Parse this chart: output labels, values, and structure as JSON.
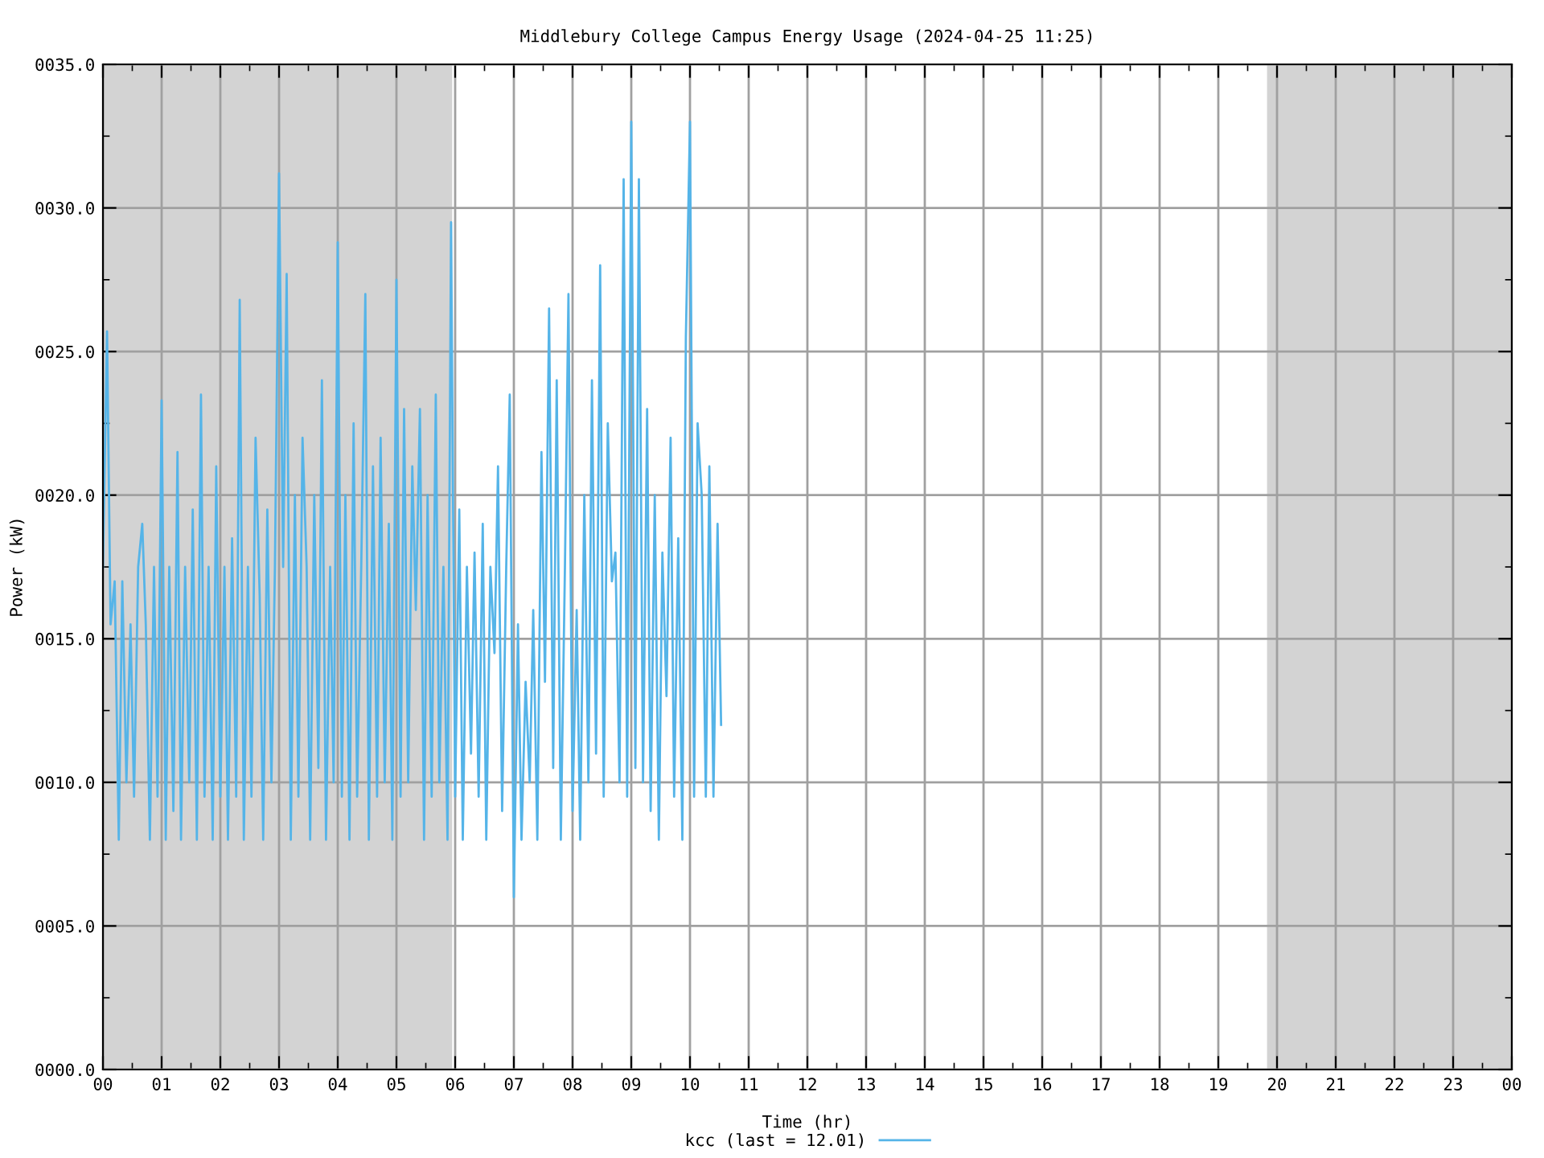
{
  "chart_data": {
    "type": "line",
    "title": "Middlebury College Campus Energy Usage (2024-04-25 11:25)",
    "xlabel": "Time (hr)",
    "ylabel": "Power (kW)",
    "xlim": [
      0,
      24
    ],
    "xticks": [
      {
        "value": 0,
        "label": "00"
      },
      {
        "value": 1,
        "label": "01"
      },
      {
        "value": 2,
        "label": "02"
      },
      {
        "value": 3,
        "label": "03"
      },
      {
        "value": 4,
        "label": "04"
      },
      {
        "value": 5,
        "label": "05"
      },
      {
        "value": 6,
        "label": "06"
      },
      {
        "value": 7,
        "label": "07"
      },
      {
        "value": 8,
        "label": "08"
      },
      {
        "value": 9,
        "label": "09"
      },
      {
        "value": 10,
        "label": "10"
      },
      {
        "value": 11,
        "label": "11"
      },
      {
        "value": 12,
        "label": "12"
      },
      {
        "value": 13,
        "label": "13"
      },
      {
        "value": 14,
        "label": "14"
      },
      {
        "value": 15,
        "label": "15"
      },
      {
        "value": 16,
        "label": "16"
      },
      {
        "value": 17,
        "label": "17"
      },
      {
        "value": 18,
        "label": "18"
      },
      {
        "value": 19,
        "label": "19"
      },
      {
        "value": 20,
        "label": "20"
      },
      {
        "value": 21,
        "label": "21"
      },
      {
        "value": 22,
        "label": "22"
      },
      {
        "value": 23,
        "label": "23"
      },
      {
        "value": 24,
        "label": "00"
      }
    ],
    "ylim": [
      0,
      35
    ],
    "yticks": [
      {
        "value": 0,
        "label": "0000.0"
      },
      {
        "value": 5,
        "label": "0005.0"
      },
      {
        "value": 10,
        "label": "0010.0"
      },
      {
        "value": 15,
        "label": "0015.0"
      },
      {
        "value": 20,
        "label": "0020.0"
      },
      {
        "value": 25,
        "label": "0025.0"
      },
      {
        "value": 30,
        "label": "0030.0"
      },
      {
        "value": 35,
        "label": "0035.0"
      }
    ],
    "grid": true,
    "legend": "bottom",
    "bands": [
      {
        "axis": "x",
        "from": 0,
        "to": 5.95,
        "color": "#d3d3d3"
      },
      {
        "axis": "x",
        "from": 19.83,
        "to": 24,
        "color": "#d3d3d3"
      }
    ],
    "x": [
      0,
      0.07,
      0.13,
      0.2,
      0.27,
      0.33,
      0.4,
      0.47,
      0.53,
      0.6,
      0.67,
      0.73,
      0.8,
      0.87,
      0.93,
      1,
      1.07,
      1.13,
      1.2,
      1.27,
      1.33,
      1.4,
      1.47,
      1.53,
      1.6,
      1.67,
      1.73,
      1.8,
      1.87,
      1.93,
      2,
      2.07,
      2.13,
      2.2,
      2.27,
      2.33,
      2.4,
      2.47,
      2.53,
      2.6,
      2.67,
      2.73,
      2.8,
      2.87,
      2.93,
      3,
      3.07,
      3.13,
      3.2,
      3.27,
      3.33,
      3.4,
      3.47,
      3.53,
      3.6,
      3.67,
      3.73,
      3.8,
      3.87,
      3.93,
      4,
      4.07,
      4.13,
      4.2,
      4.27,
      4.33,
      4.4,
      4.47,
      4.53,
      4.6,
      4.67,
      4.73,
      4.8,
      4.87,
      4.93,
      5,
      5.07,
      5.13,
      5.2,
      5.27,
      5.33,
      5.4,
      5.47,
      5.53,
      5.6,
      5.67,
      5.73,
      5.8,
      5.87,
      5.93,
      6,
      6.07,
      6.13,
      6.2,
      6.27,
      6.33,
      6.4,
      6.47,
      6.53,
      6.6,
      6.67,
      6.73,
      6.8,
      6.87,
      6.93,
      7,
      7.07,
      7.13,
      7.2,
      7.27,
      7.33,
      7.4,
      7.47,
      7.53,
      7.6,
      7.67,
      7.73,
      7.8,
      7.87,
      7.93,
      8,
      8.07,
      8.13,
      8.2,
      8.27,
      8.33,
      8.4,
      8.47,
      8.53,
      8.6,
      8.67,
      8.73,
      8.8,
      8.87,
      8.93,
      9,
      9.07,
      9.13,
      9.2,
      9.27,
      9.33,
      9.4,
      9.47,
      9.53,
      9.6,
      9.67,
      9.73,
      9.8,
      9.87,
      9.93,
      10,
      10.07,
      10.13,
      10.2,
      10.27,
      10.33,
      10.4,
      10.47,
      10.53
    ],
    "series": [
      {
        "name": "kcc (last = 12.01)",
        "color": "#55b4e8",
        "values": [
          17.5,
          25.7,
          15.5,
          17.0,
          8.0,
          17.0,
          10.0,
          15.5,
          9.5,
          17.5,
          19.0,
          15.5,
          8.0,
          17.5,
          9.5,
          23.3,
          8.0,
          17.5,
          9.0,
          21.5,
          8.0,
          17.5,
          10.0,
          19.5,
          8.0,
          23.5,
          9.5,
          17.5,
          8.0,
          21.0,
          9.5,
          17.5,
          8.0,
          18.5,
          9.5,
          26.8,
          8.0,
          17.5,
          9.5,
          22.0,
          16.5,
          8.0,
          19.5,
          10.0,
          17.5,
          31.2,
          17.5,
          27.7,
          8.0,
          20.0,
          9.5,
          22.0,
          17.5,
          8.0,
          20.0,
          10.5,
          24.0,
          8.0,
          17.5,
          10.0,
          28.8,
          9.5,
          20.0,
          8.0,
          22.5,
          9.5,
          17.5,
          27.0,
          8.0,
          21.0,
          9.5,
          22.0,
          10.0,
          19.0,
          8.0,
          27.5,
          9.5,
          23.0,
          10.0,
          21.0,
          16.0,
          23.0,
          8.0,
          20.0,
          9.5,
          23.5,
          10.0,
          17.5,
          8.0,
          29.5,
          9.5,
          19.5,
          8.0,
          17.5,
          11.0,
          18.0,
          9.5,
          19.0,
          8.0,
          17.5,
          14.5,
          21.0,
          9.0,
          17.5,
          23.5,
          6.0,
          15.5,
          8.0,
          13.5,
          10.0,
          16.0,
          8.0,
          21.5,
          13.5,
          26.5,
          10.5,
          24.0,
          8.0,
          17.5,
          27.0,
          9.0,
          16.0,
          8.0,
          20.0,
          10.0,
          24.0,
          11.0,
          28.0,
          9.5,
          22.5,
          17.0,
          18.0,
          10.0,
          31.0,
          9.5,
          33.0,
          10.5,
          31.0,
          10.0,
          23.0,
          9.0,
          20.0,
          8.0,
          18.0,
          13.0,
          22.0,
          9.5,
          18.5,
          8.0,
          25.5,
          33.0,
          9.5,
          22.5,
          20.0,
          9.5,
          21.0,
          9.5,
          19.0,
          12.0
        ]
      }
    ]
  }
}
